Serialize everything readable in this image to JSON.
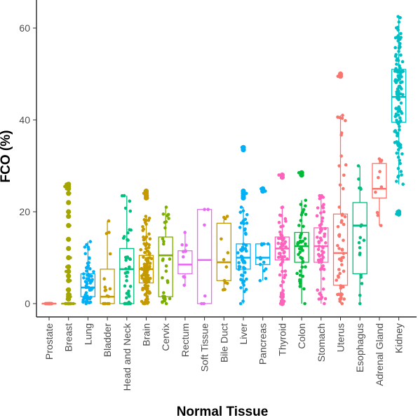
{
  "chart_data": {
    "type": "box",
    "xlabel": "Normal Tissue",
    "ylabel": "FCO (%)",
    "ylim": [
      -3,
      66
    ],
    "yticks": [
      0,
      20,
      40,
      60
    ],
    "grid": false,
    "legend": "none",
    "categories": [
      "Prostate",
      "Breast",
      "Lung",
      "Bladder",
      "Head and Neck",
      "Brain",
      "Cervix",
      "Rectum",
      "Soft Tissue",
      "Bile Duct",
      "Liver",
      "Pancreas",
      "Thyroid",
      "Colon",
      "Stomach",
      "Uterus",
      "Esophagus",
      "Adrenal Gland",
      "Kidney"
    ],
    "colors": [
      "#F8766D",
      "#A3A500",
      "#00B0F6",
      "#C49A00",
      "#00BF7D",
      "#C49A00",
      "#7CAE00",
      "#E76BF3",
      "#E76BF3",
      "#C49A00",
      "#00B0F6",
      "#00B0F6",
      "#FF62BC",
      "#00BA38",
      "#FF62BC",
      "#F8766D",
      "#00BF7D",
      "#F8766D",
      "#00BFC4"
    ],
    "boxes": [
      {
        "min": 0,
        "q1": 0,
        "median": 0,
        "q3": 0,
        "max": 0,
        "outliers": [],
        "n": 25
      },
      {
        "min": 0,
        "q1": 0,
        "median": 0,
        "q3": 0,
        "max": 0,
        "outliers": [
          26,
          25.5,
          25,
          24,
          22,
          20,
          19,
          17,
          14,
          12,
          10,
          8,
          7,
          6,
          5,
          3,
          2,
          1.5,
          1
        ],
        "n": 30
      },
      {
        "min": 0,
        "q1": 1.5,
        "median": 3.5,
        "q3": 6.5,
        "max": 13.5,
        "outliers": [],
        "n": 60
      },
      {
        "min": 0,
        "q1": 0,
        "median": 1.5,
        "q3": 7.5,
        "max": 18,
        "outliers": [],
        "n": 14
      },
      {
        "min": 0,
        "q1": 0,
        "median": 7.5,
        "q3": 12,
        "max": 23.5,
        "outliers": [],
        "n": 45
      },
      {
        "min": 0,
        "q1": 4.5,
        "median": 7.5,
        "q3": 10.5,
        "max": 19,
        "outliers": [
          24.5,
          24,
          23.5,
          23
        ],
        "n": 120
      },
      {
        "min": 0,
        "q1": 1.5,
        "median": 10.5,
        "q3": 14.5,
        "max": 21,
        "outliers": [],
        "n": 28
      },
      {
        "min": 4,
        "q1": 6.5,
        "median": 8.5,
        "q3": 11.5,
        "max": 15.5,
        "outliers": [],
        "n": 8
      },
      {
        "min": 0,
        "q1": 0,
        "median": 9.5,
        "q3": 20.5,
        "max": 20.5,
        "outliers": [],
        "n": 4
      },
      {
        "min": 3,
        "q1": 5,
        "median": 9,
        "q3": 17.5,
        "max": 19,
        "outliers": [],
        "n": 10
      },
      {
        "min": 0,
        "q1": 7.5,
        "median": 10,
        "q3": 13,
        "max": 21,
        "outliers": [
          34,
          33.5,
          24.5,
          24,
          23.5,
          23
        ],
        "n": 60
      },
      {
        "min": 5,
        "q1": 8.5,
        "median": 10,
        "q3": 13,
        "max": 13,
        "outliers": [
          25,
          24.5
        ],
        "n": 12
      },
      {
        "min": 2,
        "q1": 9.5,
        "median": 12,
        "q3": 14.5,
        "max": 21,
        "outliers": [
          28,
          27.5,
          2,
          1.5,
          0.5,
          0
        ],
        "n": 60
      },
      {
        "min": 0,
        "q1": 9,
        "median": 12.5,
        "q3": 15.5,
        "max": 22.5,
        "outliers": [
          28.5,
          28
        ],
        "n": 45
      },
      {
        "min": 0,
        "q1": 9,
        "median": 12.5,
        "q3": 16.5,
        "max": 23.5,
        "outliers": [],
        "n": 60
      },
      {
        "min": 0,
        "q1": 4,
        "median": 11,
        "q3": 19.5,
        "max": 41,
        "outliers": [
          50,
          49.5
        ],
        "n": 55
      },
      {
        "min": 0,
        "q1": 6.5,
        "median": 17,
        "q3": 22,
        "max": 30,
        "outliers": [],
        "n": 16
      },
      {
        "min": 17,
        "q1": 23,
        "median": 25,
        "q3": 30.5,
        "max": 31.5,
        "outliers": [],
        "n": 8
      },
      {
        "min": 26,
        "q1": 39.5,
        "median": 45,
        "q3": 51,
        "max": 62.5,
        "outliers": [
          20,
          19.5
        ],
        "n": 130
      }
    ]
  }
}
